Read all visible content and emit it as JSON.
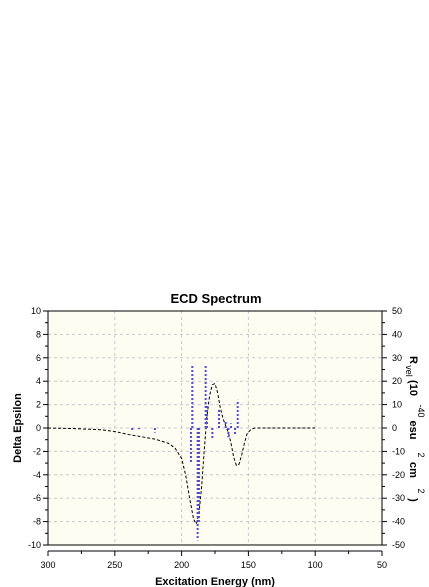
{
  "chart_data": {
    "type": "line",
    "title": "ECD Spectrum",
    "xlabel": "Excitation Energy (nm)",
    "ylabel_left": "Delta Epsilon",
    "ylabel_right_parts": [
      "R",
      "vel",
      "(10",
      "-40",
      "esu",
      "2",
      "cm",
      "2",
      ")"
    ],
    "xlim": [
      300,
      50
    ],
    "ylim_left": [
      -10,
      10
    ],
    "ylim_right": [
      -50,
      50
    ],
    "x_ticks": [
      "300",
      "250",
      "200",
      "150",
      "100",
      "50"
    ],
    "x_tick_values": [
      300,
      250,
      200,
      150,
      100,
      50
    ],
    "y_ticks_left": [
      "10",
      "8",
      "6",
      "4",
      "2",
      "0",
      "-2",
      "-4",
      "-6",
      "-8",
      "-10"
    ],
    "y_tick_values_left": [
      10,
      8,
      6,
      4,
      2,
      0,
      -2,
      -4,
      -6,
      -8,
      -10
    ],
    "y_ticks_right": [
      "50",
      "40",
      "30",
      "20",
      "10",
      "0",
      "-10",
      "-20",
      "-30",
      "-40",
      "-50"
    ],
    "y_tick_values_right": [
      50,
      40,
      30,
      20,
      10,
      0,
      -10,
      -20,
      -30,
      -40,
      -50
    ],
    "grid": true,
    "background_color": "#fffdf2",
    "series": [
      {
        "style": "black-dashed-curve",
        "color": "#000000",
        "x": [
          300,
          280,
          260,
          250,
          240,
          230,
          220,
          210,
          205,
          200,
          197,
          194,
          191,
          189,
          187,
          185,
          183,
          181,
          179,
          177,
          175,
          173,
          171,
          169,
          167,
          165,
          163,
          161,
          159,
          157,
          155,
          153,
          151,
          148,
          145,
          140,
          130,
          120,
          100
        ],
        "values": [
          0,
          -0.05,
          -0.15,
          -0.3,
          -0.55,
          -0.75,
          -0.95,
          -1.3,
          -1.7,
          -2.6,
          -4.0,
          -6.0,
          -7.8,
          -8.2,
          -7.3,
          -5.0,
          -1.8,
          1.0,
          2.8,
          3.7,
          3.8,
          3.0,
          1.7,
          0.8,
          0.2,
          -0.4,
          -1.3,
          -2.5,
          -3.2,
          -3.1,
          -2.3,
          -1.3,
          -0.5,
          -0.1,
          0,
          0,
          0,
          0,
          0
        ]
      },
      {
        "style": "blue-dashed-sticks",
        "color": "#4a4af0",
        "axis": "right",
        "x": [
          237,
          232,
          220,
          193,
          192,
          188,
          187,
          182,
          181,
          177,
          172,
          167,
          165,
          163,
          160,
          158
        ],
        "values": [
          -1,
          -0.5,
          -2,
          -15,
          27,
          -48,
          -40,
          27,
          10,
          -5,
          8,
          3,
          -4,
          2,
          -3,
          12
        ]
      }
    ]
  }
}
